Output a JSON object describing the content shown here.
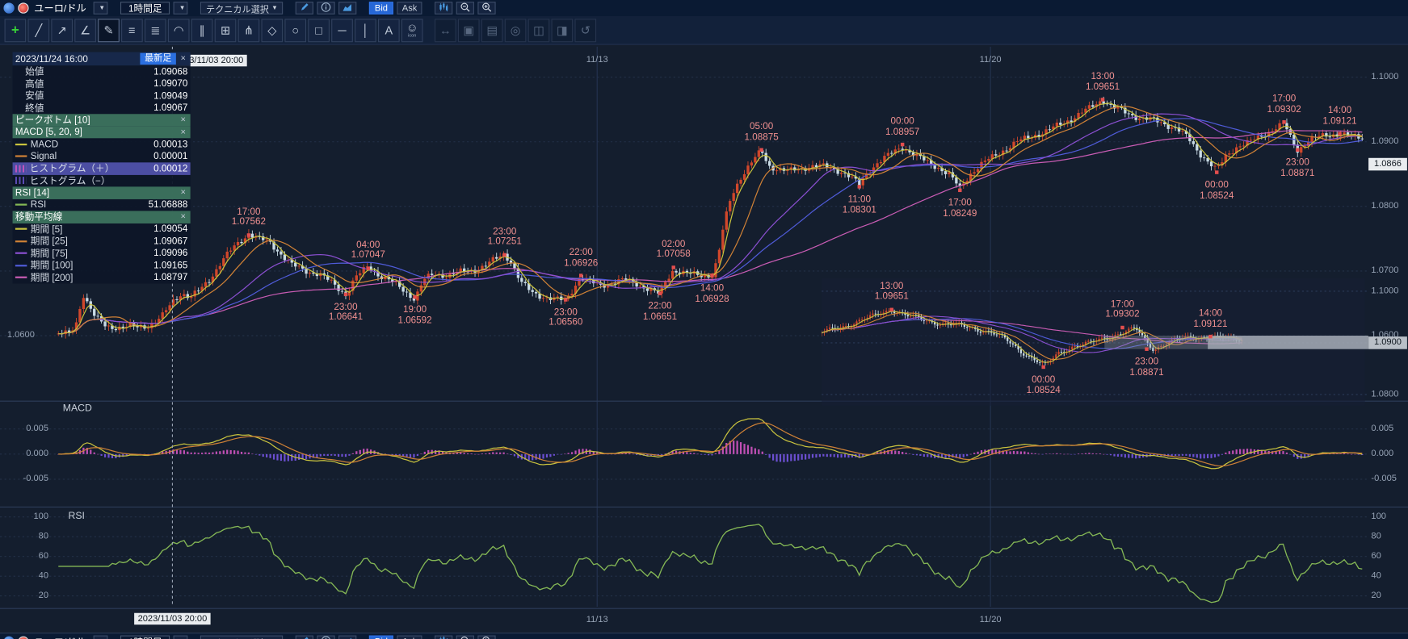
{
  "window": {
    "pair": "ユーロ/ドル",
    "timeframe": "1時間足",
    "technical_select": "テクニカル選択",
    "bid": "Bid",
    "ask": "Ask"
  },
  "glyphs": {
    "caret": "▼",
    "close": "×"
  },
  "draw_tools": {
    "tools": [
      {
        "name": "crosshair-tool",
        "glyph": "+",
        "accent": "#38d038"
      },
      {
        "name": "trendline-tool",
        "glyph": "╱"
      },
      {
        "name": "ray-line-tool",
        "glyph": "↗"
      },
      {
        "name": "angle-line-tool",
        "glyph": "∠"
      },
      {
        "name": "freehand-pencil-tool",
        "glyph": "✎",
        "pressed": true
      },
      {
        "name": "fibonacci-levels-tool",
        "glyph": "≡"
      },
      {
        "name": "horizontal-levels-tool",
        "glyph": "≣"
      },
      {
        "name": "arc-tool",
        "glyph": "◠"
      },
      {
        "name": "parallel-channel-tool",
        "glyph": "∥"
      },
      {
        "name": "gann-grid-tool",
        "glyph": "⊞"
      },
      {
        "name": "pitchfork-tool",
        "glyph": "⋔"
      },
      {
        "name": "polygon-tool",
        "glyph": "◇"
      },
      {
        "name": "ellipse-tool",
        "glyph": "○"
      },
      {
        "name": "rectangle-tool",
        "glyph": "□"
      },
      {
        "name": "horizontal-line-tool",
        "glyph": "─"
      },
      {
        "name": "vertical-line-tool",
        "glyph": "│"
      },
      {
        "name": "text-tool",
        "glyph": "A"
      },
      {
        "name": "icon-stamp-tool",
        "glyph": "☺",
        "sub": "icon"
      }
    ],
    "disabled_tools": [
      {
        "name": "move-tool",
        "glyph": "↔"
      },
      {
        "name": "select-tool",
        "glyph": "▣"
      },
      {
        "name": "layers-tool",
        "glyph": "▤"
      },
      {
        "name": "zoom-area-tool",
        "glyph": "◎"
      },
      {
        "name": "eraser-tool",
        "glyph": "◫"
      },
      {
        "name": "mask-tool",
        "glyph": "◨"
      },
      {
        "name": "undo-tool",
        "glyph": "↺"
      }
    ]
  },
  "info_panel": {
    "timestamp": "2023/11/24 16:00",
    "latest_label": "最新足",
    "ohlc": [
      {
        "label": "始値",
        "value": "1.09068"
      },
      {
        "label": "高値",
        "value": "1.09070"
      },
      {
        "label": "安値",
        "value": "1.09049"
      },
      {
        "label": "終値",
        "value": "1.09067"
      }
    ],
    "indicators": [
      {
        "header": "ピークボトム [10]",
        "rows": []
      },
      {
        "header": "MACD [5, 20, 9]",
        "rows": [
          {
            "swatch": "line",
            "color": "#c9c33e",
            "label": "MACD",
            "value": "0.00013"
          },
          {
            "swatch": "line",
            "color": "#cf8136",
            "label": "Signal",
            "value": "0.00001"
          },
          {
            "swatch": "bar",
            "color": "#bf55bc",
            "label": "ヒストグラム（＋）",
            "value": "0.00012",
            "selected": true
          },
          {
            "swatch": "bar",
            "color": "#5b4bb4",
            "label": "ヒストグラム（−）",
            "value": ""
          }
        ]
      },
      {
        "header": "RSI [14]",
        "rows": [
          {
            "swatch": "line",
            "color": "#84b755",
            "label": "RSI",
            "value": "51.06888"
          }
        ]
      },
      {
        "header": "移動平均線",
        "rows": [
          {
            "swatch": "line",
            "color": "#c9c33e",
            "label": "期間 [5]",
            "value": "1.09054"
          },
          {
            "swatch": "line",
            "color": "#cf8136",
            "label": "期間 [25]",
            "value": "1.09067"
          },
          {
            "swatch": "line",
            "color": "#8a4fd0",
            "label": "期間 [75]",
            "value": "1.09096"
          },
          {
            "swatch": "line",
            "color": "#4f5bd8",
            "label": "期間 [100]",
            "value": "1.09165"
          },
          {
            "swatch": "line",
            "color": "#c95cb4",
            "label": "期間 [200]",
            "value": "1.08797"
          }
        ]
      }
    ]
  },
  "panels": {
    "macd_title": "MACD",
    "rsi_title": "RSI"
  },
  "crosshair": {
    "x": 192,
    "top_label": "2023/11/03 20:00",
    "bottom_label": "2023/11/03 20:00"
  },
  "date_labels": [
    {
      "x": 665,
      "label": "11/13"
    },
    {
      "x": 1103,
      "label": "11/20"
    }
  ],
  "axes": {
    "main_right": [
      {
        "price": 1.1,
        "label": "1.1000"
      },
      {
        "price": 1.09,
        "label": "1.0900"
      },
      {
        "price": 1.08,
        "label": "1.0800"
      },
      {
        "price": 1.07,
        "label": "1.0700"
      },
      {
        "price": 1.06,
        "label": "1.0600"
      }
    ],
    "main_left_visible": {
      "price": 1.06,
      "label": "1.0600"
    },
    "current_price_label": "1.0866",
    "inset_right": [
      {
        "price": 1.1,
        "label": "1.1000"
      },
      {
        "price": 1.09,
        "label": "1.0900",
        "chip": true
      },
      {
        "price": 1.08,
        "label": "1.0800"
      }
    ],
    "macd": [
      {
        "v": 0.005,
        "label": "0.005"
      },
      {
        "v": 0,
        "label": "0.000"
      },
      {
        "v": -0.005,
        "label": "-0.005"
      }
    ],
    "rsi": [
      {
        "v": 100,
        "label": "100"
      },
      {
        "v": 80,
        "label": "80"
      },
      {
        "v": 60,
        "label": "60"
      },
      {
        "v": 40,
        "label": "40"
      },
      {
        "v": 20,
        "label": "20"
      }
    ]
  },
  "colors": {
    "up_candle": "#d0472b",
    "down_candle": "#c9dbe6",
    "ma": [
      "#c9c33e",
      "#cf8136",
      "#8a4fd0",
      "#4f5bd8",
      "#c95cb4"
    ],
    "macd_line": "#c9c33e",
    "signal_line": "#cf8136",
    "hist_pos": "#bf4fb4",
    "hist_neg": "#6c4fd2",
    "rsi_line": "#84b755",
    "annotation": "#f09090",
    "marker": "#e34e4e",
    "accent_blue": "#2b6fe0"
  },
  "chart_data": {
    "type": "candlestick",
    "pair": "EUR/USD (ユーロ/ドル)",
    "timeframe": "1時間足 (1 hour)",
    "y_range": [
      1.055,
      1.102
    ],
    "x_axis_dates": [
      "11/13",
      "11/20"
    ],
    "indicator_params": {
      "peak_bottom": 10,
      "macd": [
        5,
        20,
        9
      ],
      "rsi": 14,
      "ma_periods": [
        5,
        25,
        75,
        100,
        200
      ]
    },
    "price_anchors": [
      [
        65,
        1.0603
      ],
      [
        78,
        1.0606
      ],
      [
        86,
        1.0625
      ],
      [
        92,
        1.0668
      ],
      [
        98,
        1.065
      ],
      [
        106,
        1.0628
      ],
      [
        118,
        1.0615
      ],
      [
        135,
        1.061
      ],
      [
        152,
        1.0612
      ],
      [
        168,
        1.0615
      ],
      [
        180,
        1.0628
      ],
      [
        192,
        1.0655
      ],
      [
        202,
        1.0668
      ],
      [
        212,
        1.066
      ],
      [
        222,
        1.0672
      ],
      [
        235,
        1.0692
      ],
      [
        248,
        1.0716
      ],
      [
        262,
        1.0738
      ],
      [
        277,
        1.0756
      ],
      [
        288,
        1.0747
      ],
      [
        300,
        1.0744
      ],
      [
        312,
        1.0728
      ],
      [
        325,
        1.071
      ],
      [
        340,
        1.0703
      ],
      [
        355,
        1.0698
      ],
      [
        370,
        1.0682
      ],
      [
        385,
        1.0664
      ],
      [
        396,
        1.0688
      ],
      [
        410,
        1.0705
      ],
      [
        422,
        1.0692
      ],
      [
        435,
        1.0683
      ],
      [
        448,
        1.0672
      ],
      [
        462,
        1.0659
      ],
      [
        472,
        1.0688
      ],
      [
        484,
        1.0698
      ],
      [
        498,
        1.0695
      ],
      [
        512,
        1.0698
      ],
      [
        526,
        1.07
      ],
      [
        540,
        1.0706
      ],
      [
        552,
        1.0716
      ],
      [
        562,
        1.0725
      ],
      [
        570,
        1.0712
      ],
      [
        580,
        1.0682
      ],
      [
        592,
        1.0668
      ],
      [
        605,
        1.0663
      ],
      [
        618,
        1.0658
      ],
      [
        630,
        1.0656
      ],
      [
        640,
        1.0678
      ],
      [
        647,
        1.0692
      ],
      [
        656,
        1.0682
      ],
      [
        668,
        1.0676
      ],
      [
        682,
        1.068
      ],
      [
        696,
        1.0684
      ],
      [
        710,
        1.068
      ],
      [
        722,
        1.0673
      ],
      [
        735,
        1.0665
      ],
      [
        742,
        1.0688
      ],
      [
        750,
        1.0705
      ],
      [
        758,
        1.07
      ],
      [
        768,
        1.0696
      ],
      [
        780,
        1.0694
      ],
      [
        793,
        1.0693
      ],
      [
        799,
        1.0715
      ],
      [
        806,
        1.0768
      ],
      [
        814,
        1.0812
      ],
      [
        824,
        1.0842
      ],
      [
        836,
        1.0865
      ],
      [
        848,
        1.0886
      ],
      [
        856,
        1.0864
      ],
      [
        866,
        1.086
      ],
      [
        878,
        1.0856
      ],
      [
        890,
        1.086
      ],
      [
        902,
        1.0864
      ],
      [
        914,
        1.0862
      ],
      [
        926,
        1.0858
      ],
      [
        938,
        1.0852
      ],
      [
        948,
        1.0842
      ],
      [
        957,
        1.0831
      ],
      [
        966,
        1.0852
      ],
      [
        978,
        1.0868
      ],
      [
        990,
        1.088
      ],
      [
        1005,
        1.0895
      ],
      [
        1016,
        1.0884
      ],
      [
        1030,
        1.0872
      ],
      [
        1044,
        1.0862
      ],
      [
        1057,
        1.0848
      ],
      [
        1069,
        1.0826
      ],
      [
        1080,
        1.0848
      ],
      [
        1092,
        1.0862
      ],
      [
        1106,
        1.0876
      ],
      [
        1120,
        1.089
      ],
      [
        1134,
        1.0902
      ],
      [
        1150,
        1.0912
      ],
      [
        1166,
        1.0918
      ],
      [
        1182,
        1.0928
      ],
      [
        1198,
        1.0938
      ],
      [
        1214,
        1.095
      ],
      [
        1228,
        1.0964
      ],
      [
        1240,
        1.0952
      ],
      [
        1254,
        1.0945
      ],
      [
        1268,
        1.094
      ],
      [
        1282,
        1.0936
      ],
      [
        1296,
        1.093
      ],
      [
        1310,
        1.0922
      ],
      [
        1322,
        1.0906
      ],
      [
        1334,
        1.0884
      ],
      [
        1345,
        1.0868
      ],
      [
        1355,
        1.0853
      ],
      [
        1366,
        1.0878
      ],
      [
        1378,
        1.0893
      ],
      [
        1392,
        1.09
      ],
      [
        1406,
        1.0912
      ],
      [
        1418,
        1.0922
      ],
      [
        1430,
        1.0929
      ],
      [
        1437,
        1.0908
      ],
      [
        1445,
        1.0888
      ],
      [
        1456,
        1.09
      ],
      [
        1470,
        1.0906
      ],
      [
        1482,
        1.0909
      ],
      [
        1492,
        1.0911
      ],
      [
        1504,
        1.0906
      ],
      [
        1518,
        1.0907
      ]
    ],
    "annotations": [
      {
        "x": 277,
        "time": "17:00",
        "price": "1.07562",
        "side": "above"
      },
      {
        "x": 385,
        "time": "23:00",
        "price": "1.06641",
        "side": "below"
      },
      {
        "x": 410,
        "time": "04:00",
        "price": "1.07047",
        "side": "above"
      },
      {
        "x": 462,
        "time": "19:00",
        "price": "1.06592",
        "side": "below"
      },
      {
        "x": 562,
        "time": "23:00",
        "price": "1.07251",
        "side": "above"
      },
      {
        "x": 630,
        "time": "23:00",
        "price": "1.06560",
        "side": "below"
      },
      {
        "x": 647,
        "time": "22:00",
        "price": "1.06926",
        "side": "above"
      },
      {
        "x": 735,
        "time": "22:00",
        "price": "1.06651",
        "side": "below"
      },
      {
        "x": 750,
        "time": "02:00",
        "price": "1.07058",
        "side": "above"
      },
      {
        "x": 793,
        "time": "14:00",
        "price": "1.06928",
        "side": "below"
      },
      {
        "x": 848,
        "time": "05:00",
        "price": "1.08875",
        "side": "above"
      },
      {
        "x": 957,
        "time": "11:00",
        "price": "1.08301",
        "side": "below"
      },
      {
        "x": 1005,
        "time": "00:00",
        "price": "1.08957",
        "side": "above"
      },
      {
        "x": 1069,
        "time": "17:00",
        "price": "1.08249",
        "side": "below"
      },
      {
        "x": 1228,
        "time": "13:00",
        "price": "1.09651",
        "side": "above"
      },
      {
        "x": 1355,
        "time": "00:00",
        "price": "1.08524",
        "side": "below"
      },
      {
        "x": 1430,
        "time": "17:00",
        "price": "1.09302",
        "side": "above"
      },
      {
        "x": 1445,
        "time": "23:00",
        "price": "1.08871",
        "side": "below"
      },
      {
        "x": 1492,
        "time": "14:00",
        "price": "1.09121",
        "side": "above"
      }
    ],
    "inset_annotations": [
      {
        "x": 993,
        "time": "13:00",
        "price": "1.09651",
        "side": "above"
      },
      {
        "x": 1250,
        "time": "17:00",
        "price": "1.09302",
        "side": "above"
      },
      {
        "x": 1348,
        "time": "14:00",
        "price": "1.09121",
        "side": "above"
      },
      {
        "x": 1277,
        "time": "23:00",
        "price": "1.08871",
        "side": "below"
      },
      {
        "x": 1162,
        "time": "00:00",
        "price": "1.08524",
        "side": "below"
      }
    ]
  }
}
